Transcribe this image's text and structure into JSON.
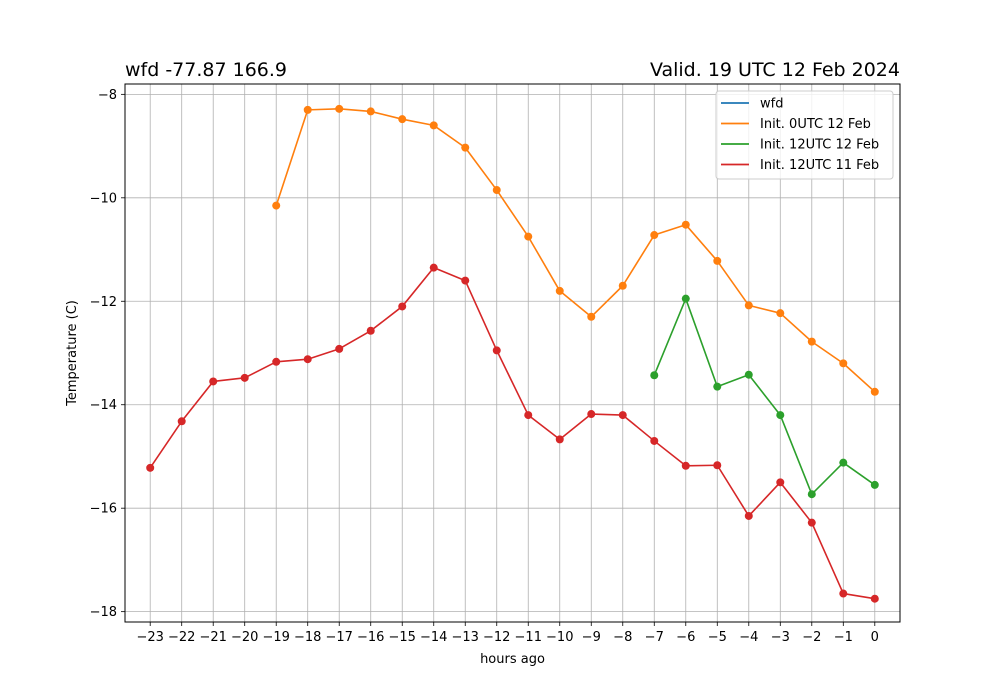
{
  "chart_data": {
    "type": "line",
    "title_left": "wfd -77.87 166.9",
    "title_right": "Valid. 19 UTC 12 Feb 2024",
    "xlabel": "hours ago",
    "ylabel": "Temperature (C)",
    "xlim": [
      -23.8,
      0.8
    ],
    "ylim": [
      -18.2,
      -7.8
    ],
    "xticks": [
      -23,
      -22,
      -21,
      -20,
      -19,
      -18,
      -17,
      -16,
      -15,
      -14,
      -13,
      -12,
      -11,
      -10,
      -9,
      -8,
      -7,
      -6,
      -5,
      -4,
      -3,
      -2,
      -1,
      0
    ],
    "xtick_labels": [
      "−23",
      "−22",
      "−21",
      "−20",
      "−19",
      "−18",
      "−17",
      "−16",
      "−15",
      "−14",
      "−13",
      "−12",
      "−11",
      "−10",
      "−9",
      "−8",
      "−7",
      "−6",
      "−5",
      "−4",
      "−3",
      "−2",
      "−1",
      "0"
    ],
    "yticks": [
      -18,
      -16,
      -14,
      -12,
      -10,
      -8
    ],
    "ytick_labels": [
      "−18",
      "−16",
      "−14",
      "−12",
      "−10",
      "−8"
    ],
    "grid": true,
    "legend_position": "top-right",
    "series": [
      {
        "name": "wfd",
        "color": "#1f77b4",
        "x": [],
        "y": []
      },
      {
        "name": "Init. 0UTC 12 Feb",
        "color": "#ff7f0e",
        "x": [
          -19,
          -18,
          -17,
          -16,
          -15,
          -14,
          -13,
          -12,
          -11,
          -10,
          -9,
          -8,
          -7,
          -6,
          -5,
          -4,
          -3,
          -2,
          -1,
          0
        ],
        "y": [
          -10.15,
          -8.3,
          -8.28,
          -8.33,
          -8.48,
          -8.6,
          -9.03,
          -9.85,
          -10.75,
          -11.8,
          -12.3,
          -11.7,
          -10.72,
          -10.52,
          -11.22,
          -12.08,
          -12.23,
          -12.78,
          -13.2,
          -13.75
        ]
      },
      {
        "name": "Init. 12UTC 12 Feb",
        "color": "#2ca02c",
        "x": [
          -7,
          -6,
          -5,
          -4,
          -3,
          -2,
          -1,
          0
        ],
        "y": [
          -13.43,
          -11.95,
          -13.65,
          -13.42,
          -14.2,
          -15.73,
          -15.12,
          -15.55
        ]
      },
      {
        "name": "Init. 12UTC 11 Feb",
        "color": "#d62728",
        "x": [
          -23,
          -22,
          -21,
          -20,
          -19,
          -18,
          -17,
          -16,
          -15,
          -14,
          -13,
          -12,
          -11,
          -10,
          -9,
          -8,
          -7,
          -6,
          -5,
          -4,
          -3,
          -2,
          -1,
          0
        ],
        "y": [
          -15.22,
          -14.32,
          -13.55,
          -13.48,
          -13.17,
          -13.12,
          -12.92,
          -12.57,
          -12.1,
          -11.35,
          -11.6,
          -12.95,
          -14.2,
          -14.67,
          -14.18,
          -14.2,
          -14.7,
          -15.18,
          -15.17,
          -16.15,
          -15.5,
          -16.28,
          -17.65,
          -17.75
        ]
      }
    ]
  }
}
